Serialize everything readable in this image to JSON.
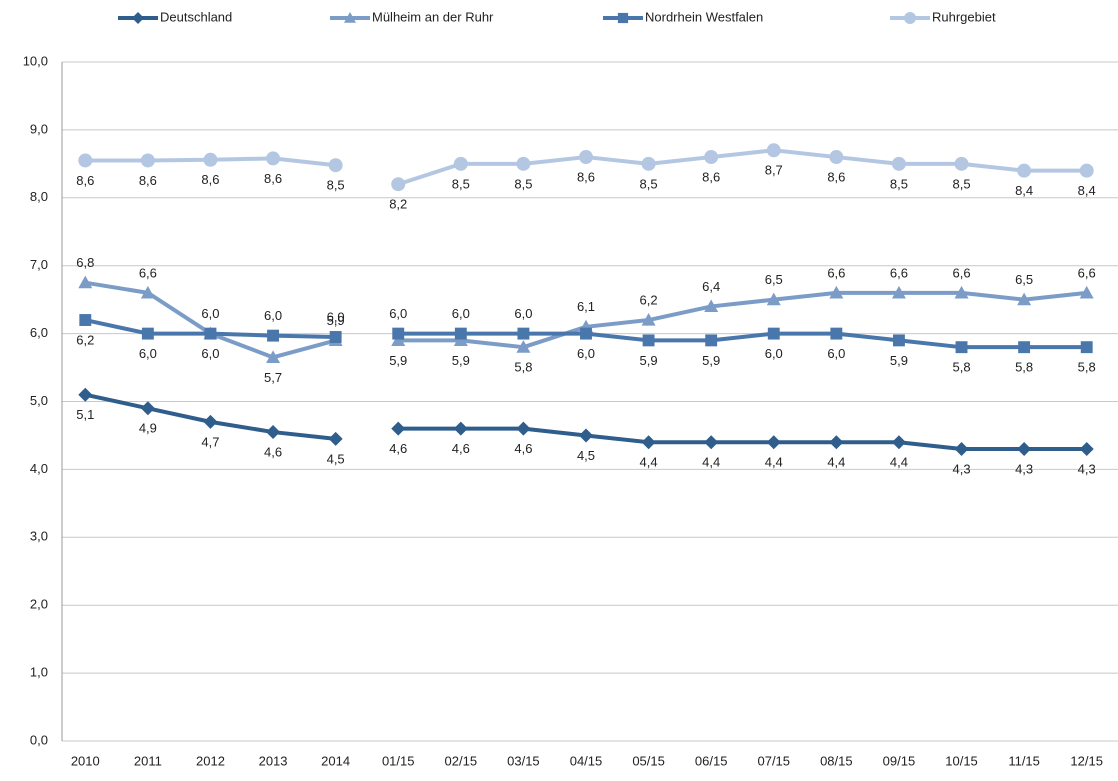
{
  "chart_data": {
    "type": "line",
    "categories": [
      "2010",
      "2011",
      "2012",
      "2013",
      "2014",
      "01/15",
      "02/15",
      "03/15",
      "04/15",
      "05/15",
      "06/15",
      "07/15",
      "08/15",
      "09/15",
      "10/15",
      "11/15",
      "12/15"
    ],
    "line_gap_after": "2014",
    "ylim": [
      0,
      10
    ],
    "yticks": [
      {
        "value": 0,
        "label": "0,0"
      },
      {
        "value": 1,
        "label": "1,0"
      },
      {
        "value": 2,
        "label": "2,0"
      },
      {
        "value": 3,
        "label": "3,0"
      },
      {
        "value": 4,
        "label": "4,0"
      },
      {
        "value": 5,
        "label": "5,0"
      },
      {
        "value": 6,
        "label": "6,0"
      },
      {
        "value": 7,
        "label": "7,0"
      },
      {
        "value": 8,
        "label": "8,0"
      },
      {
        "value": 9,
        "label": "9,0"
      },
      {
        "value": 10,
        "label": "10,0"
      }
    ],
    "grid": true,
    "legend": "top",
    "series": [
      {
        "name": "Deutschland",
        "color": "#2f5d8c",
        "marker": "diamond",
        "label_position": "below",
        "values": [
          5.1,
          4.9,
          4.7,
          4.55,
          4.45,
          4.6,
          4.6,
          4.6,
          4.5,
          4.4,
          4.4,
          4.4,
          4.4,
          4.4,
          4.3,
          4.3,
          4.3
        ],
        "value_labels": [
          "5,1",
          "4,9",
          "4,7",
          "4,6",
          "4,5",
          "4,6",
          "4,6",
          "4,6",
          "4,5",
          "4,4",
          "4,4",
          "4,4",
          "4,4",
          "4,4",
          "4,3",
          "4,3",
          "4,3"
        ]
      },
      {
        "name": "Mülheim an der Ruhr",
        "color": "#7c9cc8",
        "marker": "triangle",
        "label_position": [
          "above",
          "above",
          "above",
          "below",
          "above",
          "below",
          "below",
          "below",
          "above",
          "above",
          "above",
          "above",
          "above",
          "above",
          "above",
          "above",
          "above"
        ],
        "values": [
          6.75,
          6.6,
          6.0,
          5.65,
          5.9,
          5.9,
          5.9,
          5.8,
          6.1,
          6.2,
          6.4,
          6.5,
          6.6,
          6.6,
          6.6,
          6.5,
          6.6
        ],
        "value_labels": [
          "6,8",
          "6,6",
          "6,0",
          "5,7",
          "5,9",
          "5,9",
          "5,9",
          "5,8",
          "6,1",
          "6,2",
          "6,4",
          "6,5",
          "6,6",
          "6,6",
          "6,6",
          "6,5",
          "6,6"
        ]
      },
      {
        "name": "Nordrhein Westfalen",
        "color": "#4a77ab",
        "marker": "square",
        "label_position": [
          "below",
          "below",
          "below",
          "above",
          "above",
          "above",
          "above",
          "above",
          "below",
          "below",
          "below",
          "below",
          "below",
          "below",
          "below",
          "below",
          "below"
        ],
        "values": [
          6.2,
          6.0,
          6.0,
          5.97,
          5.95,
          6.0,
          6.0,
          6.0,
          6.0,
          5.9,
          5.9,
          6.0,
          6.0,
          5.9,
          5.8,
          5.8,
          5.8
        ],
        "value_labels": [
          "6,2",
          "6,0",
          "6,0",
          "6,0",
          "6,0",
          "6,0",
          "6,0",
          "6,0",
          "6,0",
          "5,9",
          "5,9",
          "6,0",
          "6,0",
          "5,9",
          "5,8",
          "5,8",
          "5,8"
        ]
      },
      {
        "name": "Ruhrgebiet",
        "color": "#b4c7e2",
        "marker": "circle",
        "label_position": "below",
        "values": [
          8.55,
          8.55,
          8.56,
          8.58,
          8.48,
          8.2,
          8.5,
          8.5,
          8.6,
          8.5,
          8.6,
          8.7,
          8.6,
          8.5,
          8.5,
          8.4,
          8.4
        ],
        "value_labels": [
          "8,6",
          "8,6",
          "8,6",
          "8,6",
          "8,5",
          "8,2",
          "8,5",
          "8,5",
          "8,6",
          "8,5",
          "8,6",
          "8,7",
          "8,6",
          "8,5",
          "8,5",
          "8,4",
          "8,4"
        ]
      }
    ]
  }
}
